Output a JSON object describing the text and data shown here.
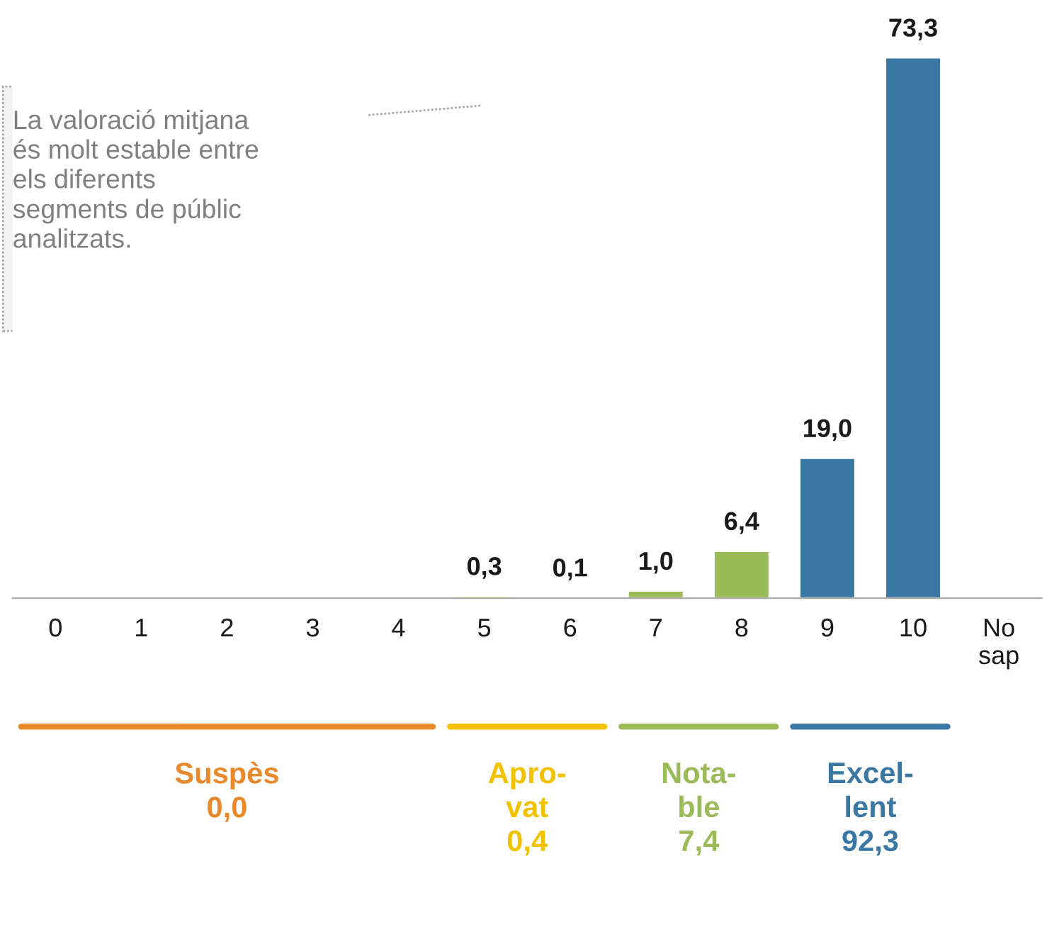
{
  "chart_data": {
    "type": "bar",
    "categories": [
      "0",
      "1",
      "2",
      "3",
      "4",
      "5",
      "6",
      "7",
      "8",
      "9",
      "10",
      "No\nsap"
    ],
    "values": [
      null,
      null,
      null,
      null,
      null,
      0.3,
      0.1,
      1.0,
      6.4,
      19.0,
      73.3,
      null
    ],
    "colors": [
      null,
      null,
      null,
      null,
      null,
      "#f2c200",
      "#f2c200",
      "#9bbb59",
      "#9bbb59",
      "#3a77a3",
      "#3a77a3",
      null
    ],
    "value_labels": [
      null,
      null,
      null,
      null,
      null,
      "0,3",
      "0,1",
      "1,0",
      "6,4",
      "19,0",
      "73,3",
      null
    ],
    "annotations": [
      "La valoració mitjana\nés molt estable entre\nels diferents\nsegments de públic\nanalitzats.",
      "Suspès\n0,0",
      "Apro-\nvat\n0,4",
      "Nota-\nble\n7,4",
      "Excel-\nlent\n92,3"
    ],
    "grid": false
  }
}
